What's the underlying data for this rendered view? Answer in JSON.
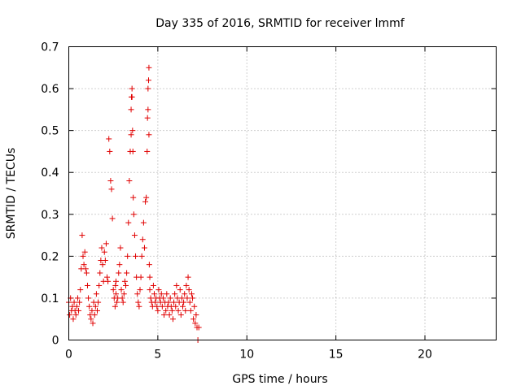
{
  "chart_data": {
    "type": "scatter",
    "title": "Day 335 of 2016, SRMTID for receiver lmmf",
    "xlabel": "GPS time / hours",
    "ylabel": "SRMTID / TECUs",
    "xlim": [
      0,
      24
    ],
    "ylim": [
      0,
      0.7
    ],
    "xticks": [
      0,
      5,
      10,
      15,
      20
    ],
    "xtick_labels": [
      "0",
      "5",
      "10",
      "15",
      "20"
    ],
    "yticks": [
      0,
      0.1,
      0.2,
      0.3,
      0.4,
      0.5,
      0.6,
      0.7
    ],
    "ytick_labels": [
      "0",
      "0.1",
      "0.2",
      "0.3",
      "0.4",
      "0.5",
      "0.6",
      "0.7"
    ],
    "grid": true,
    "marker": "plus",
    "series_color": "#e00000",
    "series": [
      {
        "name": "SRMTID",
        "x": [
          0.0,
          0.05,
          0.1,
          0.15,
          0.2,
          0.25,
          0.3,
          0.35,
          0.4,
          0.45,
          0.5,
          0.55,
          0.6,
          0.65,
          0.7,
          0.75,
          0.8,
          0.85,
          0.9,
          0.95,
          1.0,
          1.05,
          1.1,
          1.15,
          1.2,
          1.25,
          1.3,
          1.35,
          1.4,
          1.45,
          1.5,
          1.55,
          1.6,
          1.65,
          1.7,
          1.75,
          1.8,
          1.85,
          1.9,
          1.95,
          2.0,
          2.05,
          2.1,
          2.15,
          2.2,
          2.25,
          2.3,
          2.35,
          2.4,
          2.45,
          2.5,
          2.55,
          2.6,
          2.62,
          2.65,
          2.65,
          2.7,
          2.75,
          2.8,
          2.85,
          2.9,
          2.95,
          3.0,
          3.05,
          3.1,
          3.15,
          3.2,
          3.25,
          3.3,
          3.35,
          3.4,
          3.45,
          3.5,
          3.5,
          3.52,
          3.55,
          3.55,
          3.58,
          3.6,
          3.62,
          3.65,
          3.7,
          3.75,
          3.8,
          3.85,
          3.9,
          3.95,
          4.0,
          4.05,
          4.1,
          4.15,
          4.2,
          4.25,
          4.3,
          4.35,
          4.4,
          4.42,
          4.45,
          4.45,
          4.48,
          4.5,
          4.5,
          4.52,
          4.55,
          4.55,
          4.6,
          4.65,
          4.7,
          4.75,
          4.8,
          4.85,
          4.9,
          4.95,
          5.0,
          5.05,
          5.1,
          5.15,
          5.2,
          5.25,
          5.3,
          5.35,
          5.4,
          5.45,
          5.5,
          5.55,
          5.6,
          5.65,
          5.7,
          5.75,
          5.8,
          5.85,
          5.9,
          5.95,
          6.0,
          6.05,
          6.1,
          6.15,
          6.2,
          6.25,
          6.3,
          6.35,
          6.4,
          6.45,
          6.5,
          6.55,
          6.6,
          6.65,
          6.7,
          6.75,
          6.8,
          6.85,
          6.9,
          6.95,
          7.0,
          7.05,
          7.1,
          7.15,
          7.2,
          7.25,
          7.3
        ],
        "y": [
          0.09,
          0.06,
          0.1,
          0.07,
          0.08,
          0.05,
          0.09,
          0.07,
          0.06,
          0.08,
          0.1,
          0.07,
          0.09,
          0.12,
          0.17,
          0.25,
          0.2,
          0.18,
          0.21,
          0.17,
          0.16,
          0.13,
          0.1,
          0.08,
          0.06,
          0.05,
          0.07,
          0.04,
          0.09,
          0.06,
          0.08,
          0.11,
          0.07,
          0.09,
          0.13,
          0.16,
          0.19,
          0.22,
          0.18,
          0.14,
          0.21,
          0.19,
          0.23,
          0.15,
          0.14,
          0.48,
          0.45,
          0.38,
          0.36,
          0.29,
          0.12,
          0.1,
          0.08,
          0.13,
          0.14,
          0.11,
          0.09,
          0.1,
          0.16,
          0.18,
          0.22,
          0.12,
          0.1,
          0.09,
          0.11,
          0.14,
          0.13,
          0.16,
          0.2,
          0.28,
          0.38,
          0.45,
          0.49,
          0.55,
          0.58,
          0.6,
          0.58,
          0.5,
          0.45,
          0.34,
          0.3,
          0.25,
          0.2,
          0.15,
          0.11,
          0.09,
          0.08,
          0.12,
          0.15,
          0.2,
          0.24,
          0.28,
          0.22,
          0.33,
          0.34,
          0.45,
          0.53,
          0.55,
          0.6,
          0.62,
          0.65,
          0.49,
          0.18,
          0.15,
          0.12,
          0.1,
          0.09,
          0.08,
          0.13,
          0.11,
          0.09,
          0.1,
          0.08,
          0.07,
          0.12,
          0.1,
          0.09,
          0.11,
          0.08,
          0.1,
          0.06,
          0.09,
          0.07,
          0.11,
          0.08,
          0.09,
          0.06,
          0.1,
          0.08,
          0.07,
          0.05,
          0.09,
          0.11,
          0.08,
          0.13,
          0.1,
          0.07,
          0.09,
          0.12,
          0.06,
          0.1,
          0.08,
          0.09,
          0.11,
          0.07,
          0.13,
          0.1,
          0.15,
          0.12,
          0.09,
          0.07,
          0.11,
          0.1,
          0.05,
          0.08,
          0.04,
          0.06,
          0.03,
          0.0,
          0.03
        ]
      }
    ]
  }
}
